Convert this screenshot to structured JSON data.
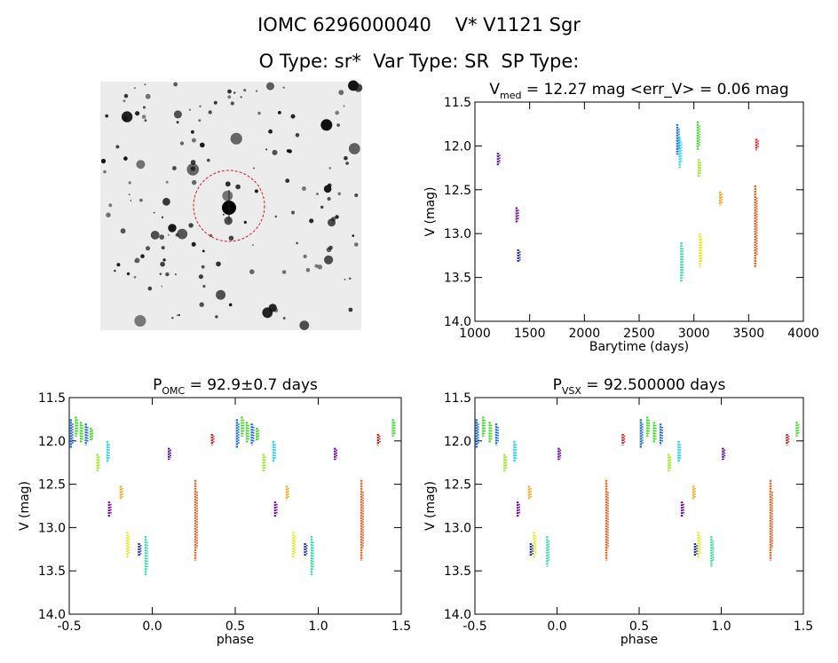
{
  "header": {
    "line1": "IOMC 6296000040    V* V1121 Sgr",
    "line2": "O Type: sr*  Var Type: SR  SP Type:"
  },
  "image_panel": {
    "description_icon": "star-field-thumbnail-icon"
  },
  "chart_data": [
    {
      "type": "scatter",
      "id": "lightcurve",
      "title_main": "V",
      "title_sub": "med",
      "title_rest": " = 12.27 mag <err_V> = 0.06 mag",
      "xlabel": "Barytime (days)",
      "ylabel": "V (mag)",
      "xlim": [
        1000,
        4000
      ],
      "ylim": [
        11.5,
        14.0
      ],
      "y_inverted": true,
      "xticks": [
        1000,
        1500,
        2000,
        2500,
        3000,
        3500,
        4000
      ],
      "yticks": [
        "11.5",
        "12.0",
        "12.5",
        "13.0",
        "13.5",
        "14.0"
      ],
      "groups": [
        {
          "x": 1210,
          "y0": 12.08,
          "y1": 12.22,
          "color": "#5b0a91"
        },
        {
          "x": 1380,
          "y0": 12.7,
          "y1": 12.88,
          "color": "#6a0f9e"
        },
        {
          "x": 1395,
          "y0": 13.18,
          "y1": 13.33,
          "color": "#1f2fd6"
        },
        {
          "x": 2848,
          "y0": 11.75,
          "y1": 12.1,
          "color": "#1468d9"
        },
        {
          "x": 2870,
          "y0": 11.9,
          "y1": 12.25,
          "color": "#1fd0f0"
        },
        {
          "x": 2885,
          "y0": 13.1,
          "y1": 13.55,
          "color": "#2fe0a6"
        },
        {
          "x": 3035,
          "y0": 11.72,
          "y1": 12.05,
          "color": "#3ad81f"
        },
        {
          "x": 3045,
          "y0": 12.15,
          "y1": 12.35,
          "color": "#9ae81a"
        },
        {
          "x": 3055,
          "y0": 13.0,
          "y1": 13.38,
          "color": "#e6e61a"
        },
        {
          "x": 3240,
          "y0": 12.52,
          "y1": 12.68,
          "color": "#f0a31a"
        },
        {
          "x": 3560,
          "y0": 12.45,
          "y1": 13.38,
          "color": "#ec5a14"
        },
        {
          "x": 3570,
          "y0": 11.92,
          "y1": 12.05,
          "color": "#e01a1a"
        }
      ]
    },
    {
      "type": "scatter",
      "id": "phase-omc",
      "title_main": "P",
      "title_sub": "OMC",
      "title_rest": " = 92.9±0.7 days",
      "xlabel": "phase",
      "ylabel": "V (mag)",
      "xlim": [
        -0.5,
        1.5
      ],
      "ylim": [
        11.5,
        14.0
      ],
      "y_inverted": true,
      "xticks": [
        "-0.5",
        "0.0",
        "0.5",
        "1.0",
        "1.5"
      ],
      "yticks": [
        "11.5",
        "12.0",
        "12.5",
        "13.0",
        "13.5",
        "14.0"
      ],
      "groups": [
        {
          "x": -0.49,
          "y0": 11.75,
          "y1": 12.08,
          "color": "#1468d9"
        },
        {
          "x": -0.46,
          "y0": 11.72,
          "y1": 11.95,
          "color": "#3ad81f"
        },
        {
          "x": -0.43,
          "y0": 11.78,
          "y1": 12.02,
          "color": "#3ad81f"
        },
        {
          "x": -0.4,
          "y0": 11.8,
          "y1": 12.05,
          "color": "#1468d9"
        },
        {
          "x": -0.37,
          "y0": 11.85,
          "y1": 12.0,
          "color": "#3ad81f"
        },
        {
          "x": -0.33,
          "y0": 12.15,
          "y1": 12.35,
          "color": "#9ae81a"
        },
        {
          "x": -0.27,
          "y0": 12.0,
          "y1": 12.25,
          "color": "#1fd0f0"
        },
        {
          "x": -0.26,
          "y0": 12.7,
          "y1": 12.88,
          "color": "#6a0f9e"
        },
        {
          "x": -0.19,
          "y0": 12.52,
          "y1": 12.68,
          "color": "#f0a31a"
        },
        {
          "x": -0.15,
          "y0": 13.05,
          "y1": 13.35,
          "color": "#e6e61a"
        },
        {
          "x": -0.08,
          "y0": 13.18,
          "y1": 13.33,
          "color": "#1f2fd6"
        },
        {
          "x": -0.04,
          "y0": 13.1,
          "y1": 13.55,
          "color": "#2fe0a6"
        },
        {
          "x": 0.1,
          "y0": 12.08,
          "y1": 12.22,
          "color": "#5b0a91"
        },
        {
          "x": 0.26,
          "y0": 12.45,
          "y1": 13.38,
          "color": "#ec5a14"
        },
        {
          "x": 0.36,
          "y0": 11.92,
          "y1": 12.05,
          "color": "#e01a1a"
        },
        {
          "x": 0.51,
          "y0": 11.75,
          "y1": 12.08,
          "color": "#1468d9"
        },
        {
          "x": 0.54,
          "y0": 11.72,
          "y1": 11.95,
          "color": "#3ad81f"
        },
        {
          "x": 0.57,
          "y0": 11.78,
          "y1": 12.02,
          "color": "#3ad81f"
        },
        {
          "x": 0.6,
          "y0": 11.8,
          "y1": 12.05,
          "color": "#1468d9"
        },
        {
          "x": 0.63,
          "y0": 11.85,
          "y1": 12.0,
          "color": "#3ad81f"
        },
        {
          "x": 0.67,
          "y0": 12.15,
          "y1": 12.35,
          "color": "#9ae81a"
        },
        {
          "x": 0.73,
          "y0": 12.0,
          "y1": 12.25,
          "color": "#1fd0f0"
        },
        {
          "x": 0.74,
          "y0": 12.7,
          "y1": 12.88,
          "color": "#6a0f9e"
        },
        {
          "x": 0.81,
          "y0": 12.52,
          "y1": 12.68,
          "color": "#f0a31a"
        },
        {
          "x": 0.85,
          "y0": 13.05,
          "y1": 13.35,
          "color": "#e6e61a"
        },
        {
          "x": 0.92,
          "y0": 13.18,
          "y1": 13.33,
          "color": "#1f2fd6"
        },
        {
          "x": 0.96,
          "y0": 13.1,
          "y1": 13.55,
          "color": "#2fe0a6"
        },
        {
          "x": 1.1,
          "y0": 12.08,
          "y1": 12.22,
          "color": "#5b0a91"
        },
        {
          "x": 1.26,
          "y0": 12.45,
          "y1": 13.38,
          "color": "#ec5a14"
        },
        {
          "x": 1.36,
          "y0": 11.92,
          "y1": 12.05,
          "color": "#e01a1a"
        },
        {
          "x": 1.45,
          "y0": 11.75,
          "y1": 11.95,
          "color": "#3ad81f"
        }
      ]
    },
    {
      "type": "scatter",
      "id": "phase-vsx",
      "title_main": "P",
      "title_sub": "VSX",
      "title_rest": " = 92.500000 days",
      "xlabel": "phase",
      "ylabel": "V (mag)",
      "xlim": [
        -0.5,
        1.5
      ],
      "ylim": [
        11.5,
        14.0
      ],
      "y_inverted": true,
      "xticks": [
        "-0.5",
        "0.0",
        "0.5",
        "1.0",
        "1.5"
      ],
      "yticks": [
        "11.5",
        "12.0",
        "12.5",
        "13.0",
        "13.5",
        "14.0"
      ],
      "groups": [
        {
          "x": -0.49,
          "y0": 11.75,
          "y1": 12.08,
          "color": "#1468d9"
        },
        {
          "x": -0.45,
          "y0": 11.72,
          "y1": 11.95,
          "color": "#3ad81f"
        },
        {
          "x": -0.41,
          "y0": 11.78,
          "y1": 12.02,
          "color": "#3ad81f"
        },
        {
          "x": -0.37,
          "y0": 11.8,
          "y1": 12.05,
          "color": "#1468d9"
        },
        {
          "x": -0.32,
          "y0": 12.15,
          "y1": 12.35,
          "color": "#9ae81a"
        },
        {
          "x": -0.26,
          "y0": 12.0,
          "y1": 12.25,
          "color": "#1fd0f0"
        },
        {
          "x": -0.24,
          "y0": 12.7,
          "y1": 12.88,
          "color": "#6a0f9e"
        },
        {
          "x": -0.17,
          "y0": 12.52,
          "y1": 12.68,
          "color": "#f0a31a"
        },
        {
          "x": -0.14,
          "y0": 13.05,
          "y1": 13.35,
          "color": "#e6e61a"
        },
        {
          "x": -0.16,
          "y0": 13.18,
          "y1": 13.33,
          "color": "#1f2fd6"
        },
        {
          "x": -0.06,
          "y0": 13.1,
          "y1": 13.45,
          "color": "#2fe0a6"
        },
        {
          "x": 0.01,
          "y0": 12.08,
          "y1": 12.22,
          "color": "#5b0a91"
        },
        {
          "x": 0.3,
          "y0": 12.45,
          "y1": 13.38,
          "color": "#ec5a14"
        },
        {
          "x": 0.4,
          "y0": 11.92,
          "y1": 12.05,
          "color": "#e01a1a"
        },
        {
          "x": 0.51,
          "y0": 11.75,
          "y1": 12.08,
          "color": "#1468d9"
        },
        {
          "x": 0.55,
          "y0": 11.72,
          "y1": 11.95,
          "color": "#3ad81f"
        },
        {
          "x": 0.59,
          "y0": 11.78,
          "y1": 12.02,
          "color": "#3ad81f"
        },
        {
          "x": 0.63,
          "y0": 11.8,
          "y1": 12.05,
          "color": "#1468d9"
        },
        {
          "x": 0.68,
          "y0": 12.15,
          "y1": 12.35,
          "color": "#9ae81a"
        },
        {
          "x": 0.74,
          "y0": 12.0,
          "y1": 12.25,
          "color": "#1fd0f0"
        },
        {
          "x": 0.76,
          "y0": 12.7,
          "y1": 12.88,
          "color": "#6a0f9e"
        },
        {
          "x": 0.83,
          "y0": 12.52,
          "y1": 12.68,
          "color": "#f0a31a"
        },
        {
          "x": 0.86,
          "y0": 13.05,
          "y1": 13.35,
          "color": "#e6e61a"
        },
        {
          "x": 0.84,
          "y0": 13.18,
          "y1": 13.33,
          "color": "#1f2fd6"
        },
        {
          "x": 0.94,
          "y0": 13.1,
          "y1": 13.45,
          "color": "#2fe0a6"
        },
        {
          "x": 1.01,
          "y0": 12.08,
          "y1": 12.22,
          "color": "#5b0a91"
        },
        {
          "x": 1.3,
          "y0": 12.45,
          "y1": 13.38,
          "color": "#ec5a14"
        },
        {
          "x": 1.4,
          "y0": 11.92,
          "y1": 12.05,
          "color": "#e01a1a"
        },
        {
          "x": 1.46,
          "y0": 11.78,
          "y1": 11.95,
          "color": "#3ad81f"
        }
      ]
    }
  ]
}
